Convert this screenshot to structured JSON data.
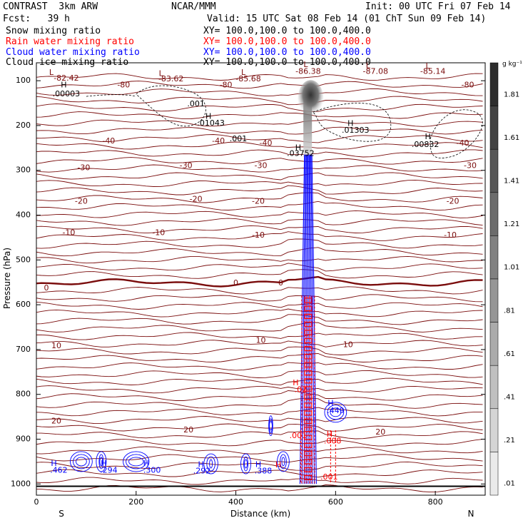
{
  "header": {
    "model": "CONTRAST  3km ARW",
    "org": "NCAR/MMM",
    "init": "Init: 00 UTC Fri 07 Feb 14",
    "fcst": "Fcst:   39 h",
    "valid": "Valid: 15 UTC Sat 08 Feb 14 (01 ChT Sun 09 Feb 14)"
  },
  "fields": [
    {
      "name": "Snow mixing ratio",
      "xy": "XY= 100.0,100.0 to 100.0,400.0",
      "color": "#000000"
    },
    {
      "name": "Rain water mixing ratio",
      "xy": "XY= 100.0,100.0 to 100.0,400.0",
      "color": "#ff0000"
    },
    {
      "name": "Cloud water mixing ratio",
      "xy": "XY= 100.0,100.0 to 100.0,400.0",
      "color": "#0000ff"
    },
    {
      "name": "Cloud ice mixing ratio",
      "xy": "XY= 100.0,100.0 to 100.0,400.0",
      "color": "#000000"
    }
  ],
  "chart_data": {
    "type": "heatmap",
    "xlabel": "Distance (km)",
    "ylabel": "Pressure (hPa)",
    "xlim": [
      0,
      900
    ],
    "ylim": [
      1025,
      60
    ],
    "xticks": [
      "0",
      "200",
      "400",
      "600",
      "800"
    ],
    "xtick_values": [
      0,
      200,
      400,
      600,
      800
    ],
    "yticks": [
      "100",
      "200",
      "300",
      "400",
      "500",
      "600",
      "700",
      "800",
      "900",
      "1000"
    ],
    "ytick_values": [
      100,
      200,
      300,
      400,
      500,
      600,
      700,
      800,
      900,
      1000
    ],
    "left_label": "S",
    "right_label": "N",
    "colorbar": {
      "unit": "g kg⁻¹",
      "labels": [
        "1.81",
        "1.61",
        "1.41",
        "1.21",
        "1.01",
        ".81",
        ".61",
        ".41",
        ".21",
        ".01"
      ],
      "values": [
        1.81,
        1.61,
        1.41,
        1.21,
        1.01,
        0.81,
        0.61,
        0.41,
        0.21,
        0.01
      ]
    },
    "temperature_contour_labels": [
      {
        "x": 60,
        "p": 95,
        "text": "-82.42"
      },
      {
        "x": 175,
        "p": 110,
        "text": "-80"
      },
      {
        "x": 270,
        "p": 97,
        "text": "-83.62"
      },
      {
        "x": 380,
        "p": 110,
        "text": "-80"
      },
      {
        "x": 425,
        "p": 97,
        "text": "-85.68"
      },
      {
        "x": 545,
        "p": 80,
        "text": "-86.38"
      },
      {
        "x": 680,
        "p": 80,
        "text": "-87.08"
      },
      {
        "x": 795,
        "p": 80,
        "text": "-85.14"
      },
      {
        "x": 865,
        "p": 110,
        "text": "-80"
      },
      {
        "x": 145,
        "p": 235,
        "text": "-40"
      },
      {
        "x": 365,
        "p": 235,
        "text": "-40"
      },
      {
        "x": 460,
        "p": 240,
        "text": "-40"
      },
      {
        "x": 855,
        "p": 240,
        "text": "-40"
      },
      {
        "x": 95,
        "p": 295,
        "text": "-30"
      },
      {
        "x": 300,
        "p": 290,
        "text": "-30"
      },
      {
        "x": 450,
        "p": 290,
        "text": "-30"
      },
      {
        "x": 870,
        "p": 290,
        "text": "-30"
      },
      {
        "x": 90,
        "p": 370,
        "text": "-20"
      },
      {
        "x": 320,
        "p": 365,
        "text": "-20"
      },
      {
        "x": 445,
        "p": 370,
        "text": "-20"
      },
      {
        "x": 835,
        "p": 370,
        "text": "-20"
      },
      {
        "x": 65,
        "p": 440,
        "text": "-10"
      },
      {
        "x": 245,
        "p": 440,
        "text": "-10"
      },
      {
        "x": 445,
        "p": 445,
        "text": "-10"
      },
      {
        "x": 830,
        "p": 445,
        "text": "-10"
      },
      {
        "x": 20,
        "p": 563,
        "text": "0"
      },
      {
        "x": 400,
        "p": 552,
        "text": "0"
      },
      {
        "x": 490,
        "p": 552,
        "text": "0"
      },
      {
        "x": 450,
        "p": 680,
        "text": "10"
      },
      {
        "x": 625,
        "p": 690,
        "text": "10"
      },
      {
        "x": 40,
        "p": 692,
        "text": "10"
      },
      {
        "x": 40,
        "p": 860,
        "text": "20"
      },
      {
        "x": 305,
        "p": 880,
        "text": "20"
      },
      {
        "x": 690,
        "p": 885,
        "text": "20"
      }
    ],
    "ice_contour_labels": [
      {
        "x": 55,
        "p": 110,
        "text": "H"
      },
      {
        "x": 60,
        "p": 130,
        "text": ".00003"
      },
      {
        "x": 320,
        "p": 152,
        "text": ".001"
      },
      {
        "x": 345,
        "p": 180,
        "text": "H"
      },
      {
        "x": 350,
        "p": 195,
        "text": ".01043"
      },
      {
        "x": 405,
        "p": 230,
        "text": ".001"
      },
      {
        "x": 525,
        "p": 250,
        "text": "H"
      },
      {
        "x": 530,
        "p": 263,
        "text": ".03752"
      },
      {
        "x": 630,
        "p": 196,
        "text": "H"
      },
      {
        "x": 640,
        "p": 211,
        "text": ".01303"
      },
      {
        "x": 785,
        "p": 226,
        "text": "H"
      },
      {
        "x": 780,
        "p": 243,
        "text": ".00832"
      }
    ],
    "min_labels": [
      {
        "x": 30,
        "p": 82,
        "text": "L"
      },
      {
        "x": 250,
        "p": 85,
        "text": "L"
      },
      {
        "x": 415,
        "p": 82,
        "text": "L"
      },
      {
        "x": 540,
        "p": 65,
        "text": "L"
      },
      {
        "x": 665,
        "p": 67,
        "text": "L"
      },
      {
        "x": 785,
        "p": 68,
        "text": "L"
      }
    ],
    "cloud_water_labels": [
      {
        "x": 35,
        "p": 955,
        "text": "H"
      },
      {
        "x": 45,
        "p": 970,
        "text": ".462"
      },
      {
        "x": 135,
        "p": 955,
        "text": "H"
      },
      {
        "x": 145,
        "p": 970,
        "text": ".294"
      },
      {
        "x": 220,
        "p": 955,
        "text": "H"
      },
      {
        "x": 232,
        "p": 970,
        "text": ".300"
      },
      {
        "x": 330,
        "p": 957,
        "text": "H"
      },
      {
        "x": 332,
        "p": 972,
        "text": ".292"
      },
      {
        "x": 445,
        "p": 957,
        "text": "H"
      },
      {
        "x": 455,
        "p": 972,
        "text": ".388"
      },
      {
        "x": 590,
        "p": 820,
        "text": "H"
      },
      {
        "x": 600,
        "p": 837,
        "text": ".449"
      }
    ],
    "rain_water_labels": [
      {
        "x": 520,
        "p": 775,
        "text": "H"
      },
      {
        "x": 530,
        "p": 790,
        "text": ".02"
      },
      {
        "x": 485,
        "p": 958,
        "text": "H"
      },
      {
        "x": 525,
        "p": 893,
        "text": ".001"
      },
      {
        "x": 588,
        "p": 890,
        "text": "H"
      },
      {
        "x": 594,
        "p": 905,
        "text": ".008"
      },
      {
        "x": 587,
        "p": 985,
        "text": ".001"
      }
    ]
  }
}
